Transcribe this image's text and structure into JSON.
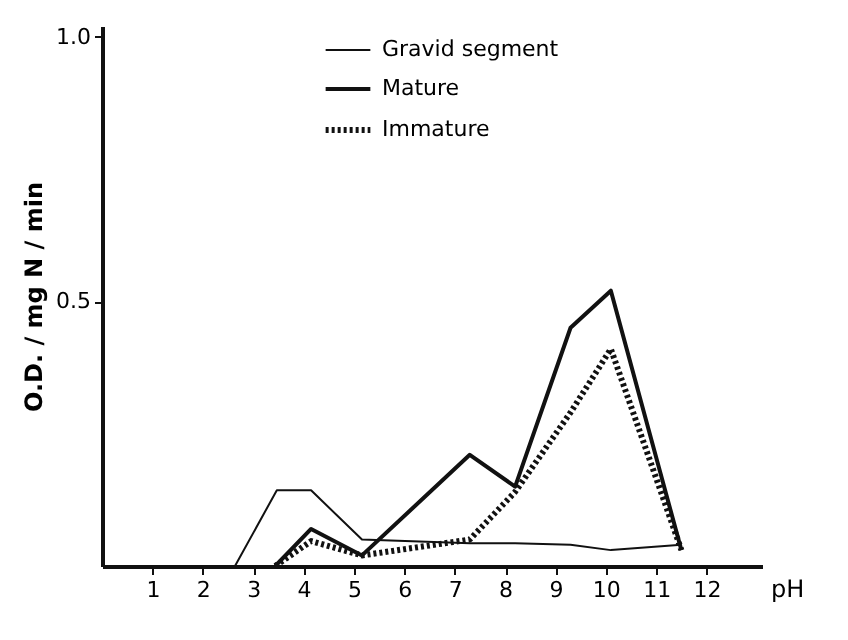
{
  "chart_data": {
    "type": "line",
    "xlabel": "pH",
    "ylabel": "O.D. / mg N / min",
    "xlim": [
      0,
      13.1
    ],
    "xticks": [
      1,
      2,
      3,
      4,
      5,
      6,
      7,
      8,
      9,
      10,
      11,
      12
    ],
    "ylim": [
      0,
      1.02
    ],
    "yticks": [
      0.5,
      {
        "value": 1.0,
        "label": "1.0"
      }
    ],
    "grid": false,
    "legend": "top",
    "marker": "none",
    "series": [
      {
        "name": "Gravid segment",
        "color": "#111111",
        "line_style": "solid",
        "x": [
          2.64,
          3.47,
          4.15,
          5.16,
          7.3,
          8.2,
          9.3,
          10.1,
          11.5
        ],
        "values": [
          0,
          0.143,
          0.143,
          0.05,
          0.043,
          0.043,
          0.04,
          0.03,
          0.04
        ]
      },
      {
        "name": "Mature",
        "color": "#111111",
        "line_style": "solid",
        "x": [
          3.44,
          4.15,
          5.16,
          7.3,
          8.2,
          9.3,
          10.1,
          11.5
        ],
        "values": [
          0,
          0.07,
          0.02,
          0.21,
          0.15,
          0.45,
          0.52,
          0.03
        ]
      },
      {
        "name": "Immature",
        "color": "#111111",
        "line_style": "dotted",
        "x": [
          3.44,
          4.15,
          5.16,
          7.3,
          8.2,
          9.3,
          10.1,
          11.5
        ],
        "values": [
          0,
          0.047,
          0.02,
          0.05,
          0.14,
          0.29,
          0.41,
          0.03
        ]
      }
    ]
  }
}
